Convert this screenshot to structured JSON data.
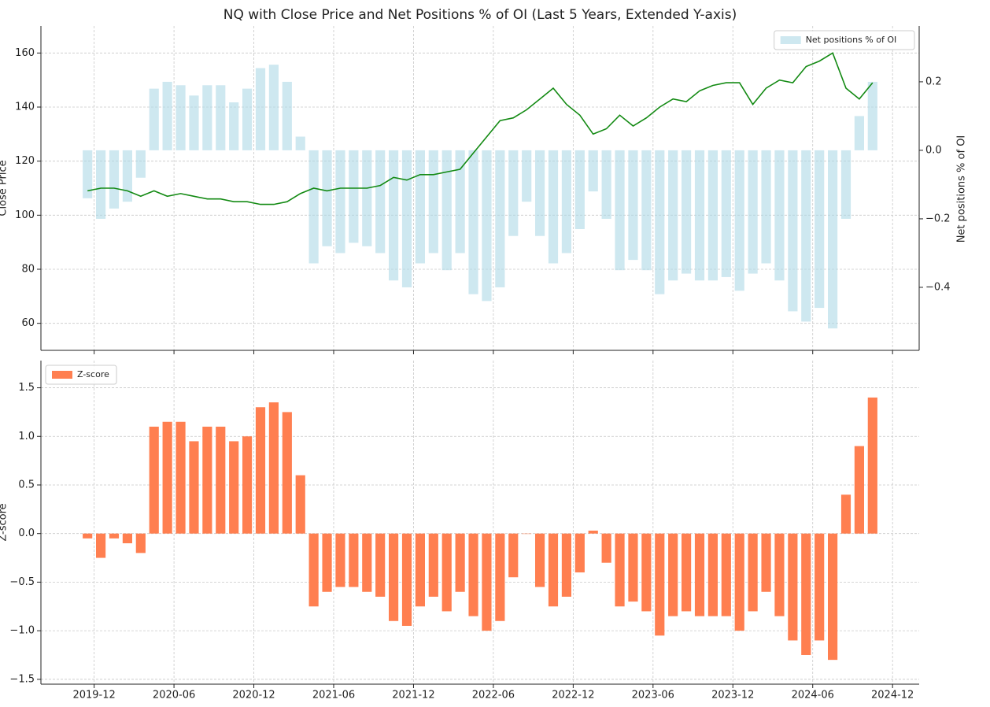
{
  "chart_data": [
    {
      "type": "bar_line",
      "title": "NQ with Close Price and Net Positions % of OI (Last 5 Years, Extended Y-axis)",
      "ylabel": "Close Price",
      "y2label": "Net positions % of OI",
      "x": [
        "2019-11",
        "2019-12",
        "2020-01",
        "2020-02",
        "2020-03",
        "2020-04",
        "2020-05",
        "2020-06",
        "2020-07",
        "2020-08",
        "2020-09",
        "2020-10",
        "2020-11",
        "2020-12",
        "2021-01",
        "2021-02",
        "2021-03",
        "2021-04",
        "2021-05",
        "2021-06",
        "2021-07",
        "2021-08",
        "2021-09",
        "2021-10",
        "2021-11",
        "2021-12",
        "2022-01",
        "2022-02",
        "2022-03",
        "2022-04",
        "2022-05",
        "2022-06",
        "2022-07",
        "2022-08",
        "2022-09",
        "2022-10",
        "2022-11",
        "2022-12",
        "2023-01",
        "2023-02",
        "2023-03",
        "2023-04",
        "2023-05",
        "2023-06",
        "2023-07",
        "2023-08",
        "2023-09",
        "2023-10",
        "2023-11",
        "2023-12",
        "2024-01",
        "2024-02",
        "2024-03",
        "2024-04",
        "2024-05",
        "2024-06",
        "2024-07",
        "2024-08",
        "2024-09",
        "2024-10"
      ],
      "series": [
        {
          "name": "Net positions % of OI",
          "type": "bar",
          "axis": "y2",
          "color": "#add8e6",
          "values": [
            -0.14,
            -0.2,
            -0.17,
            -0.15,
            -0.08,
            0.18,
            0.2,
            0.19,
            0.16,
            0.19,
            0.19,
            0.14,
            0.18,
            0.24,
            0.25,
            0.2,
            0.04,
            -0.33,
            -0.28,
            -0.3,
            -0.27,
            -0.28,
            -0.3,
            -0.38,
            -0.4,
            -0.33,
            -0.3,
            -0.35,
            -0.3,
            -0.42,
            -0.44,
            -0.4,
            -0.25,
            -0.15,
            -0.25,
            -0.33,
            -0.3,
            -0.23,
            -0.12,
            -0.2,
            -0.35,
            -0.32,
            -0.35,
            -0.42,
            -0.38,
            -0.36,
            -0.38,
            -0.38,
            -0.37,
            -0.41,
            -0.36,
            -0.33,
            -0.38,
            -0.47,
            -0.5,
            -0.46,
            -0.52,
            -0.2,
            0.1,
            0.2
          ]
        },
        {
          "type": "line",
          "color": "#138a13",
          "values": [
            109,
            110,
            110,
            109,
            107,
            109,
            107,
            108,
            107,
            106,
            106,
            105,
            105,
            104,
            104,
            105,
            108,
            110,
            109,
            110,
            110,
            110,
            111,
            114,
            113,
            115,
            115,
            116,
            117,
            123,
            129,
            135,
            136,
            139,
            143,
            147,
            141,
            137,
            130,
            132,
            137,
            133,
            136,
            140,
            143,
            142,
            146,
            148,
            149,
            149,
            141,
            147,
            150,
            149,
            155,
            157,
            160,
            147,
            143,
            149
          ]
        }
      ],
      "xlim": [
        "2019-08",
        "2025-02"
      ],
      "ylim": [
        50,
        170
      ],
      "yticks": [
        60,
        80,
        100,
        120,
        140,
        160
      ],
      "y2lim": [
        -0.584,
        0.363
      ],
      "y2ticks": [
        {
          "value": -0.4,
          "label": "−0.4"
        },
        {
          "value": -0.2,
          "label": "−0.2"
        },
        {
          "value": 0,
          "label": "0.0"
        },
        {
          "value": 0.2,
          "label": "0.2"
        }
      ],
      "grid": true,
      "legend": "upper right"
    },
    {
      "type": "bar",
      "ylabel": "Z-score",
      "x": [
        "2019-11",
        "2019-12",
        "2020-01",
        "2020-02",
        "2020-03",
        "2020-04",
        "2020-05",
        "2020-06",
        "2020-07",
        "2020-08",
        "2020-09",
        "2020-10",
        "2020-11",
        "2020-12",
        "2021-01",
        "2021-02",
        "2021-03",
        "2021-04",
        "2021-05",
        "2021-06",
        "2021-07",
        "2021-08",
        "2021-09",
        "2021-10",
        "2021-11",
        "2021-12",
        "2022-01",
        "2022-02",
        "2022-03",
        "2022-04",
        "2022-05",
        "2022-06",
        "2022-07",
        "2022-08",
        "2022-09",
        "2022-10",
        "2022-11",
        "2022-12",
        "2023-01",
        "2023-02",
        "2023-03",
        "2023-04",
        "2023-05",
        "2023-06",
        "2023-07",
        "2023-08",
        "2023-09",
        "2023-10",
        "2023-11",
        "2023-12",
        "2024-01",
        "2024-02",
        "2024-03",
        "2024-04",
        "2024-05",
        "2024-06",
        "2024-07",
        "2024-08",
        "2024-09",
        "2024-10"
      ],
      "series": [
        {
          "name": "Z-score",
          "type": "bar",
          "color": "#ff7f50",
          "values": [
            -0.05,
            -0.25,
            -0.05,
            -0.1,
            -0.2,
            1.1,
            1.15,
            1.15,
            0.95,
            1.1,
            1.1,
            0.95,
            1.0,
            1.3,
            1.35,
            1.25,
            0.6,
            -0.75,
            -0.6,
            -0.55,
            -0.55,
            -0.6,
            -0.65,
            -0.9,
            -0.95,
            -0.75,
            -0.65,
            -0.8,
            -0.6,
            -0.85,
            -1.0,
            -0.9,
            -0.45,
            0.0,
            -0.55,
            -0.75,
            -0.65,
            -0.4,
            0.03,
            -0.3,
            -0.75,
            -0.7,
            -0.8,
            -1.05,
            -0.85,
            -0.8,
            -0.85,
            -0.85,
            -0.85,
            -1.0,
            -0.8,
            -0.6,
            -0.85,
            -1.1,
            -1.25,
            -1.1,
            -1.3,
            0.4,
            0.9,
            1.4
          ]
        }
      ],
      "xlim": [
        "2019-08",
        "2025-02"
      ],
      "xticks": [
        "2019-12",
        "2020-06",
        "2020-12",
        "2021-06",
        "2021-12",
        "2022-06",
        "2022-12",
        "2023-06",
        "2023-12",
        "2024-06",
        "2024-12"
      ],
      "ylim": [
        -1.55,
        1.78
      ],
      "yticks": [
        {
          "value": -1.5,
          "label": "−1.5"
        },
        {
          "value": -1,
          "label": "−1.0"
        },
        {
          "value": -0.5,
          "label": "−0.5"
        },
        {
          "value": 0,
          "label": "0.0"
        },
        0.5,
        {
          "value": 1,
          "label": "1.0"
        },
        1.5
      ],
      "grid": true,
      "legend": "upper left"
    }
  ]
}
